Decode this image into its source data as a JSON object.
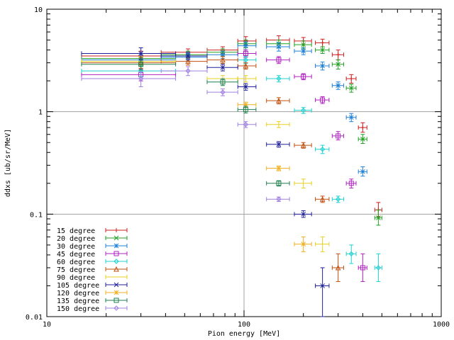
{
  "chart_data": {
    "type": "scatter",
    "xlabel": "Pion energy [MeV]",
    "ylabel": "ddxs [ub/sr/MeV]",
    "x_scale": "log",
    "y_scale": "log",
    "xlim": [
      10,
      1000
    ],
    "ylim": [
      0.01,
      10
    ],
    "x_ticks": [
      {
        "value": 10,
        "label": "10"
      },
      {
        "value": 100,
        "label": "100"
      },
      {
        "value": 1000,
        "label": "1000"
      }
    ],
    "y_ticks": [
      {
        "value": 0.01,
        "label": "0.01"
      },
      {
        "value": 0.1,
        "label": "0.1"
      },
      {
        "value": 1,
        "label": "1"
      },
      {
        "value": 10,
        "label": "10"
      }
    ],
    "grid": true,
    "legend_position": "bottom-left",
    "series": [
      {
        "name": "15 degree",
        "color": "#cc2020",
        "marker": "plus",
        "points": [
          {
            "x": 30,
            "xerr": [
              15,
              45
            ],
            "y": 3.5,
            "yerr": [
              3.1,
              3.9
            ]
          },
          {
            "x": 52,
            "xerr": [
              38,
              65
            ],
            "y": 3.8,
            "yerr": [
              3.5,
              4.1
            ]
          },
          {
            "x": 78,
            "xerr": [
              65,
              93
            ],
            "y": 4.0,
            "yerr": [
              3.7,
              4.3
            ]
          },
          {
            "x": 102,
            "xerr": [
              93,
              115
            ],
            "y": 4.9,
            "yerr": [
              4.5,
              5.4
            ]
          },
          {
            "x": 150,
            "xerr": [
              130,
              170
            ],
            "y": 5.0,
            "yerr": [
              4.6,
              5.5
            ]
          },
          {
            "x": 200,
            "xerr": [
              180,
              220
            ],
            "y": 4.9,
            "yerr": [
              4.5,
              5.3
            ]
          },
          {
            "x": 250,
            "xerr": [
              230,
              270
            ],
            "y": 4.7,
            "yerr": [
              4.3,
              5.1
            ]
          },
          {
            "x": 300,
            "xerr": [
              280,
              320
            ],
            "y": 3.6,
            "yerr": [
              3.2,
              4.0
            ]
          },
          {
            "x": 350,
            "xerr": [
              330,
              370
            ],
            "y": 2.1,
            "yerr": [
              1.9,
              2.3
            ]
          },
          {
            "x": 400,
            "xerr": [
              380,
              420
            ],
            "y": 0.7,
            "yerr": [
              0.63,
              0.78
            ]
          },
          {
            "x": 480,
            "xerr": [
              460,
              500
            ],
            "y": 0.11,
            "yerr": [
              0.095,
              0.13
            ]
          }
        ]
      },
      {
        "name": "20 degree",
        "color": "#20a020",
        "marker": "cross",
        "points": [
          {
            "x": 30,
            "xerr": [
              15,
              45
            ],
            "y": 3.3,
            "yerr": [
              2.9,
              3.7
            ]
          },
          {
            "x": 52,
            "xerr": [
              38,
              65
            ],
            "y": 3.6,
            "yerr": [
              3.3,
              3.9
            ]
          },
          {
            "x": 78,
            "xerr": [
              65,
              93
            ],
            "y": 3.8,
            "yerr": [
              3.5,
              4.1
            ]
          },
          {
            "x": 102,
            "xerr": [
              93,
              115
            ],
            "y": 4.6,
            "yerr": [
              4.2,
              5.0
            ]
          },
          {
            "x": 150,
            "xerr": [
              130,
              170
            ],
            "y": 4.6,
            "yerr": [
              4.2,
              5.0
            ]
          },
          {
            "x": 200,
            "xerr": [
              180,
              220
            ],
            "y": 4.5,
            "yerr": [
              4.1,
              4.9
            ]
          },
          {
            "x": 250,
            "xerr": [
              230,
              270
            ],
            "y": 4.0,
            "yerr": [
              3.7,
              4.3
            ]
          },
          {
            "x": 300,
            "xerr": [
              280,
              320
            ],
            "y": 2.9,
            "yerr": [
              2.6,
              3.2
            ]
          },
          {
            "x": 350,
            "xerr": [
              330,
              370
            ],
            "y": 1.7,
            "yerr": [
              1.55,
              1.85
            ]
          },
          {
            "x": 400,
            "xerr": [
              380,
              420
            ],
            "y": 0.54,
            "yerr": [
              0.49,
              0.6
            ]
          },
          {
            "x": 480,
            "xerr": [
              460,
              500
            ],
            "y": 0.092,
            "yerr": [
              0.078,
              0.11
            ]
          }
        ]
      },
      {
        "name": "30 degree",
        "color": "#2080d8",
        "marker": "star",
        "points": [
          {
            "x": 30,
            "xerr": [
              15,
              45
            ],
            "y": 3.2,
            "yerr": [
              2.8,
              3.6
            ]
          },
          {
            "x": 52,
            "xerr": [
              38,
              65
            ],
            "y": 3.4,
            "yerr": [
              3.1,
              3.7
            ]
          },
          {
            "x": 78,
            "xerr": [
              65,
              93
            ],
            "y": 3.6,
            "yerr": [
              3.3,
              3.9
            ]
          },
          {
            "x": 102,
            "xerr": [
              93,
              115
            ],
            "y": 4.4,
            "yerr": [
              4.0,
              4.8
            ]
          },
          {
            "x": 150,
            "xerr": [
              130,
              170
            ],
            "y": 4.3,
            "yerr": [
              3.9,
              4.7
            ]
          },
          {
            "x": 200,
            "xerr": [
              180,
              220
            ],
            "y": 3.9,
            "yerr": [
              3.6,
              4.2
            ]
          },
          {
            "x": 250,
            "xerr": [
              230,
              270
            ],
            "y": 2.8,
            "yerr": [
              2.55,
              3.05
            ]
          },
          {
            "x": 300,
            "xerr": [
              280,
              320
            ],
            "y": 1.8,
            "yerr": [
              1.65,
              1.95
            ]
          },
          {
            "x": 350,
            "xerr": [
              330,
              370
            ],
            "y": 0.88,
            "yerr": [
              0.8,
              0.96
            ]
          },
          {
            "x": 400,
            "xerr": [
              380,
              420
            ],
            "y": 0.26,
            "yerr": [
              0.235,
              0.29
            ]
          }
        ]
      },
      {
        "name": "45 degree",
        "color": "#b020c0",
        "marker": "square",
        "points": [
          {
            "x": 30,
            "xerr": [
              15,
              45
            ],
            "y": 2.3,
            "yerr": [
              2.0,
              2.6
            ]
          },
          {
            "x": 102,
            "xerr": [
              93,
              115
            ],
            "y": 3.7,
            "yerr": [
              3.4,
              4.0
            ]
          },
          {
            "x": 150,
            "xerr": [
              130,
              170
            ],
            "y": 3.2,
            "yerr": [
              2.95,
              3.45
            ]
          },
          {
            "x": 200,
            "xerr": [
              180,
              220
            ],
            "y": 2.2,
            "yerr": [
              2.05,
              2.35
            ]
          },
          {
            "x": 250,
            "xerr": [
              230,
              270
            ],
            "y": 1.3,
            "yerr": [
              1.2,
              1.4
            ]
          },
          {
            "x": 300,
            "xerr": [
              280,
              320
            ],
            "y": 0.58,
            "yerr": [
              0.53,
              0.64
            ]
          },
          {
            "x": 350,
            "xerr": [
              330,
              370
            ],
            "y": 0.2,
            "yerr": [
              0.18,
              0.22
            ]
          },
          {
            "x": 400,
            "xerr": [
              380,
              420
            ],
            "y": 0.03,
            "yerr": [
              0.022,
              0.041
            ]
          }
        ]
      },
      {
        "name": "60 degree",
        "color": "#20d0d0",
        "marker": "diamond",
        "points": [
          {
            "x": 30,
            "xerr": [
              15,
              45
            ],
            "y": 2.5,
            "yerr": [
              2.2,
              2.8
            ]
          },
          {
            "x": 102,
            "xerr": [
              93,
              115
            ],
            "y": 3.2,
            "yerr": [
              2.95,
              3.45
            ]
          },
          {
            "x": 150,
            "xerr": [
              130,
              170
            ],
            "y": 2.1,
            "yerr": [
              1.95,
              2.25
            ]
          },
          {
            "x": 200,
            "xerr": [
              180,
              220
            ],
            "y": 1.03,
            "yerr": [
              0.96,
              1.1
            ]
          },
          {
            "x": 250,
            "xerr": [
              230,
              270
            ],
            "y": 0.43,
            "yerr": [
              0.39,
              0.47
            ]
          },
          {
            "x": 300,
            "xerr": [
              280,
              320
            ],
            "y": 0.14,
            "yerr": [
              0.13,
              0.15
            ]
          },
          {
            "x": 350,
            "xerr": [
              330,
              370
            ],
            "y": 0.041,
            "yerr": [
              0.033,
              0.05
            ]
          },
          {
            "x": 480,
            "xerr": [
              460,
              500
            ],
            "y": 0.03,
            "yerr": [
              0.022,
              0.041
            ]
          }
        ]
      },
      {
        "name": "75 degree",
        "color": "#c05010",
        "marker": "triangle",
        "points": [
          {
            "x": 30,
            "xerr": [
              15,
              45
            ],
            "y": 3.0,
            "yerr": [
              2.65,
              3.35
            ]
          },
          {
            "x": 52,
            "xerr": [
              38,
              65
            ],
            "y": 3.1,
            "yerr": [
              2.85,
              3.35
            ]
          },
          {
            "x": 78,
            "xerr": [
              65,
              93
            ],
            "y": 3.2,
            "yerr": [
              2.95,
              3.45
            ]
          },
          {
            "x": 102,
            "xerr": [
              93,
              115
            ],
            "y": 2.8,
            "yerr": [
              2.6,
              3.0
            ]
          },
          {
            "x": 150,
            "xerr": [
              130,
              170
            ],
            "y": 1.28,
            "yerr": [
              1.19,
              1.37
            ]
          },
          {
            "x": 200,
            "xerr": [
              180,
              220
            ],
            "y": 0.47,
            "yerr": [
              0.44,
              0.5
            ]
          },
          {
            "x": 250,
            "xerr": [
              230,
              270
            ],
            "y": 0.14,
            "yerr": [
              0.13,
              0.15
            ]
          },
          {
            "x": 300,
            "xerr": [
              280,
              320
            ],
            "y": 0.03,
            "yerr": [
              0.022,
              0.041
            ]
          }
        ]
      },
      {
        "name": "90 degree",
        "color": "#e8d020",
        "marker": "none",
        "points": [
          {
            "x": 30,
            "xerr": [
              15,
              45
            ],
            "y": 3.1,
            "yerr": [
              2.75,
              3.45
            ]
          },
          {
            "x": 78,
            "xerr": [
              65,
              93
            ],
            "y": 2.1,
            "yerr": [
              1.95,
              2.25
            ]
          },
          {
            "x": 102,
            "xerr": [
              93,
              115
            ],
            "y": 2.1,
            "yerr": [
              1.95,
              2.25
            ]
          },
          {
            "x": 150,
            "xerr": [
              130,
              170
            ],
            "y": 0.75,
            "yerr": [
              0.7,
              0.8
            ]
          },
          {
            "x": 200,
            "xerr": [
              180,
              220
            ],
            "y": 0.2,
            "yerr": [
              0.18,
              0.22
            ]
          },
          {
            "x": 250,
            "xerr": [
              230,
              270
            ],
            "y": 0.051,
            "yerr": [
              0.043,
              0.06
            ]
          }
        ]
      },
      {
        "name": "105 degree",
        "color": "#20209a",
        "marker": "cross",
        "points": [
          {
            "x": 30,
            "xerr": [
              15,
              45
            ],
            "y": 3.7,
            "yerr": [
              3.2,
              4.2
            ]
          },
          {
            "x": 52,
            "xerr": [
              38,
              65
            ],
            "y": 3.5,
            "yerr": [
              3.2,
              3.8
            ]
          },
          {
            "x": 78,
            "xerr": [
              65,
              93
            ],
            "y": 2.7,
            "yerr": [
              2.5,
              2.9
            ]
          },
          {
            "x": 102,
            "xerr": [
              93,
              115
            ],
            "y": 1.75,
            "yerr": [
              1.62,
              1.88
            ]
          },
          {
            "x": 150,
            "xerr": [
              130,
              170
            ],
            "y": 0.48,
            "yerr": [
              0.45,
              0.51
            ]
          },
          {
            "x": 200,
            "xerr": [
              180,
              220
            ],
            "y": 0.1,
            "yerr": [
              0.093,
              0.108
            ]
          },
          {
            "x": 250,
            "xerr": [
              230,
              270
            ],
            "y": 0.02,
            "yerr": [
              0.01,
              0.03
            ]
          }
        ]
      },
      {
        "name": "120 degree",
        "color": "#f0b020",
        "marker": "star",
        "points": [
          {
            "x": 102,
            "xerr": [
              93,
              115
            ],
            "y": 1.17,
            "yerr": [
              1.1,
              1.24
            ]
          },
          {
            "x": 150,
            "xerr": [
              130,
              170
            ],
            "y": 0.28,
            "yerr": [
              0.265,
              0.295
            ]
          },
          {
            "x": 200,
            "xerr": [
              180,
              220
            ],
            "y": 0.051,
            "yerr": [
              0.043,
              0.06
            ]
          }
        ]
      },
      {
        "name": "135 degree",
        "color": "#208050",
        "marker": "square",
        "points": [
          {
            "x": 30,
            "xerr": [
              15,
              45
            ],
            "y": 2.9,
            "yerr": [
              2.55,
              3.25
            ]
          },
          {
            "x": 78,
            "xerr": [
              65,
              93
            ],
            "y": 1.95,
            "yerr": [
              1.8,
              2.1
            ]
          },
          {
            "x": 102,
            "xerr": [
              93,
              115
            ],
            "y": 1.05,
            "yerr": [
              0.97,
              1.13
            ]
          },
          {
            "x": 150,
            "xerr": [
              130,
              170
            ],
            "y": 0.2,
            "yerr": [
              0.188,
              0.212
            ]
          }
        ]
      },
      {
        "name": "150 degree",
        "color": "#a080e0",
        "marker": "diamond",
        "points": [
          {
            "x": 30,
            "xerr": [
              15,
              45
            ],
            "y": 2.1,
            "yerr": [
              1.75,
              2.45
            ]
          },
          {
            "x": 52,
            "xerr": [
              38,
              65
            ],
            "y": 2.5,
            "yerr": [
              2.25,
              2.75
            ]
          },
          {
            "x": 78,
            "xerr": [
              65,
              93
            ],
            "y": 1.55,
            "yerr": [
              1.43,
              1.67
            ]
          },
          {
            "x": 102,
            "xerr": [
              93,
              115
            ],
            "y": 0.75,
            "yerr": [
              0.7,
              0.8
            ]
          },
          {
            "x": 150,
            "xerr": [
              130,
              170
            ],
            "y": 0.14,
            "yerr": [
              0.133,
              0.147
            ]
          }
        ]
      }
    ]
  }
}
